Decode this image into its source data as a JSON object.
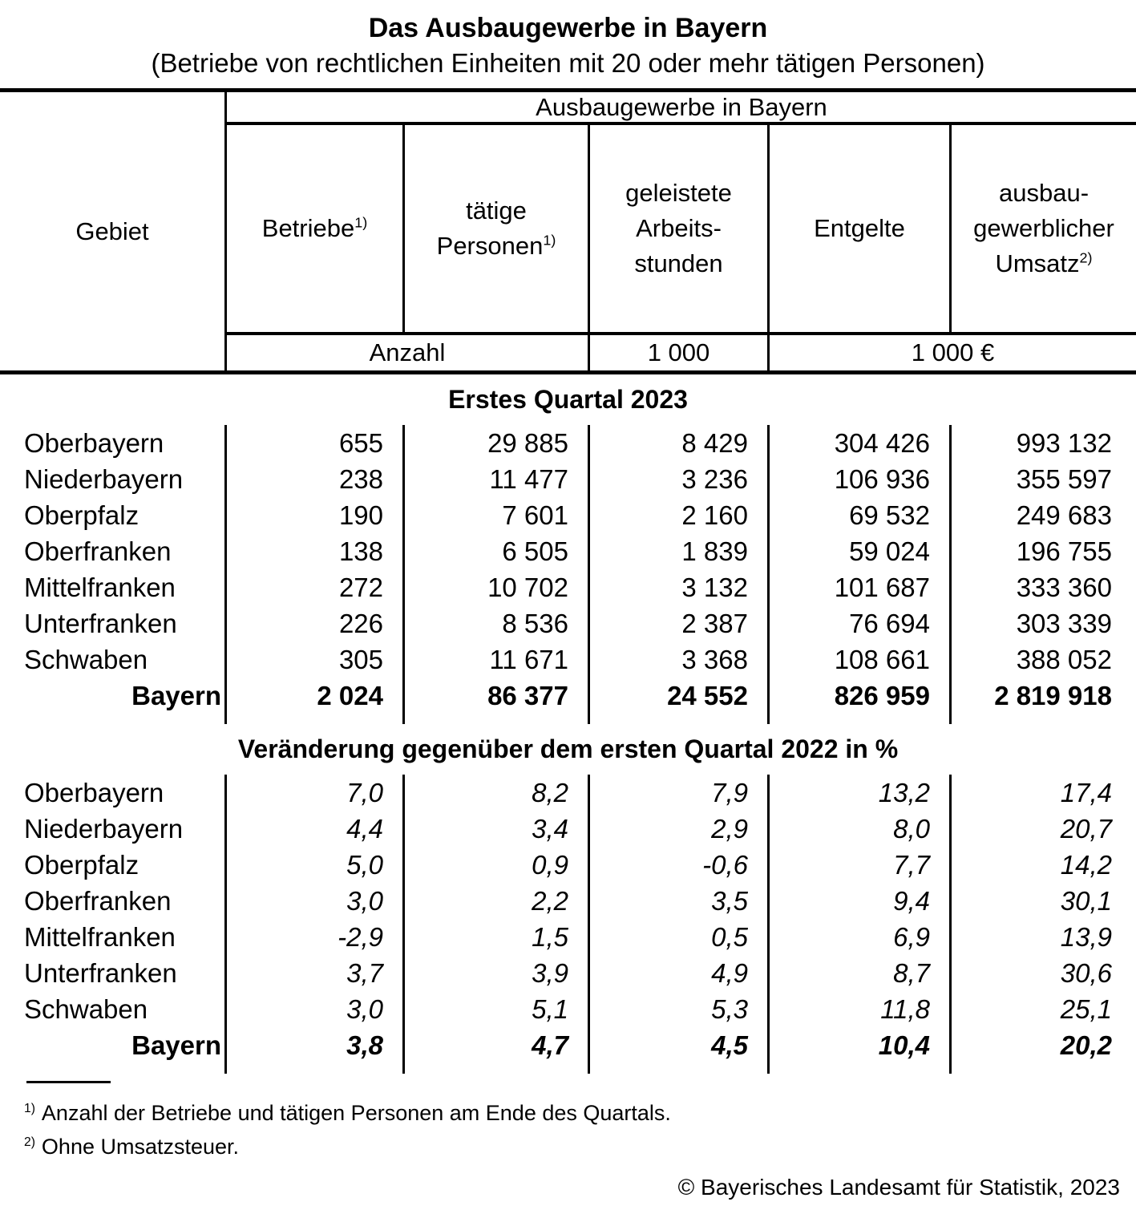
{
  "colors": {
    "text": "#000000",
    "background": "#ffffff",
    "rule": "#000000"
  },
  "title": "Das Ausbaugewerbe in Bayern",
  "subtitle": "(Betriebe von rechtlichen Einheiten mit 20 oder mehr tätigen Personen)",
  "table": {
    "header": {
      "gebiet": "Gebiet",
      "group": "Ausbaugewerbe in Bayern",
      "columns": [
        {
          "lines": [
            "Betriebe"
          ],
          "sup": "1)"
        },
        {
          "lines": [
            "tätige",
            "Personen"
          ],
          "sup": "1)"
        },
        {
          "lines": [
            "geleistete",
            "Arbeits-",
            "stunden"
          ],
          "sup": ""
        },
        {
          "lines": [
            "Entgelte"
          ],
          "sup": ""
        },
        {
          "lines": [
            "ausbau-",
            "gewerblicher",
            "Umsatz"
          ],
          "sup": "2)"
        }
      ],
      "units": {
        "anzahl": "Anzahl",
        "thousand": "1 000",
        "thousand_euro": "1 000 €"
      }
    },
    "sections": [
      {
        "heading": "Erstes Quartal 2023",
        "rows": [
          {
            "gebiet": "Oberbayern",
            "values": [
              "655",
              "29 885",
              "8 429",
              "304 426",
              "993 132"
            ],
            "total": false
          },
          {
            "gebiet": "Niederbayern",
            "values": [
              "238",
              "11 477",
              "3 236",
              "106 936",
              "355 597"
            ],
            "total": false
          },
          {
            "gebiet": "Oberpfalz",
            "values": [
              "190",
              "7 601",
              "2 160",
              "69 532",
              "249 683"
            ],
            "total": false
          },
          {
            "gebiet": "Oberfranken",
            "values": [
              "138",
              "6 505",
              "1 839",
              "59 024",
              "196 755"
            ],
            "total": false
          },
          {
            "gebiet": "Mittelfranken",
            "values": [
              "272",
              "10 702",
              "3 132",
              "101 687",
              "333 360"
            ],
            "total": false
          },
          {
            "gebiet": "Unterfranken",
            "values": [
              "226",
              "8 536",
              "2 387",
              "76 694",
              "303 339"
            ],
            "total": false
          },
          {
            "gebiet": "Schwaben",
            "values": [
              "305",
              "11 671",
              "3 368",
              "108 661",
              "388 052"
            ],
            "total": false
          },
          {
            "gebiet": "Bayern",
            "values": [
              "2 024",
              "86 377",
              "24 552",
              "826 959",
              "2 819 918"
            ],
            "total": true
          }
        ]
      },
      {
        "heading": "Veränderung gegenüber dem ersten Quartal 2022 in %",
        "rows": [
          {
            "gebiet": "Oberbayern",
            "values": [
              "7,0",
              "8,2",
              "7,9",
              "13,2",
              "17,4"
            ],
            "total": false
          },
          {
            "gebiet": "Niederbayern",
            "values": [
              "4,4",
              "3,4",
              "2,9",
              "8,0",
              "20,7"
            ],
            "total": false
          },
          {
            "gebiet": "Oberpfalz",
            "values": [
              "5,0",
              "0,9",
              "-0,6",
              "7,7",
              "14,2"
            ],
            "total": false
          },
          {
            "gebiet": "Oberfranken",
            "values": [
              "3,0",
              "2,2",
              "3,5",
              "9,4",
              "30,1"
            ],
            "total": false
          },
          {
            "gebiet": "Mittelfranken",
            "values": [
              "-2,9",
              "1,5",
              "0,5",
              "6,9",
              "13,9"
            ],
            "total": false
          },
          {
            "gebiet": "Unterfranken",
            "values": [
              "3,7",
              "3,9",
              "4,9",
              "8,7",
              "30,6"
            ],
            "total": false
          },
          {
            "gebiet": "Schwaben",
            "values": [
              "3,0",
              "5,1",
              "5,3",
              "11,8",
              "25,1"
            ],
            "total": false
          },
          {
            "gebiet": "Bayern",
            "values": [
              "3,8",
              "4,7",
              "4,5",
              "10,4",
              "20,2"
            ],
            "total": true
          }
        ]
      }
    ]
  },
  "footnotes": [
    {
      "marker": "1)",
      "text": "Anzahl der Betriebe und tätigen Personen am Ende des Quartals."
    },
    {
      "marker": "2)",
      "text": "Ohne Umsatzsteuer."
    }
  ],
  "copyright": "© Bayerisches Landesamt für Statistik, 2023"
}
